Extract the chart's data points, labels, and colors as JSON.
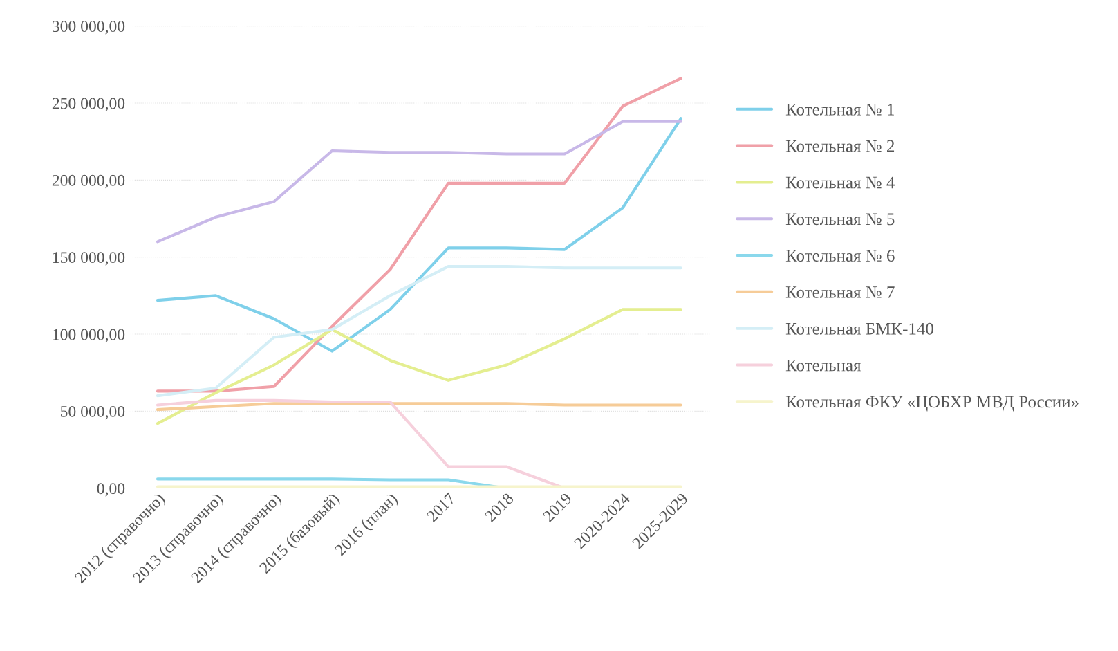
{
  "chart_data": {
    "type": "line",
    "categories": [
      "2012 (справочно)",
      "2013 (справочно)",
      "2014 (справочно)",
      "2015 (базовый)",
      "2016 (план)",
      "2017",
      "2018",
      "2019",
      "2020-2024",
      "2025-2029"
    ],
    "series": [
      {
        "name": "Котельная № 1",
        "color": "#7fd0ea",
        "values": [
          122000,
          125000,
          110000,
          89000,
          116000,
          156000,
          156000,
          155000,
          182000,
          240000
        ]
      },
      {
        "name": "Котельная № 2",
        "color": "#f0a0a8",
        "values": [
          63000,
          63000,
          66000,
          105000,
          142000,
          198000,
          198000,
          198000,
          248000,
          266000
        ]
      },
      {
        "name": "Котельная № 4",
        "color": "#e4ee90",
        "values": [
          42000,
          62000,
          80000,
          103000,
          83000,
          70000,
          80000,
          97000,
          116000,
          116000
        ]
      },
      {
        "name": "Котельная № 5",
        "color": "#c8b8e8",
        "values": [
          160000,
          176000,
          186000,
          219000,
          218000,
          218000,
          217000,
          217000,
          238000,
          238000
        ]
      },
      {
        "name": "Котельная № 6",
        "color": "#8ad8ec",
        "values": [
          6000,
          6000,
          6000,
          6000,
          5500,
          5500,
          0,
          0,
          0,
          0
        ]
      },
      {
        "name": "Котельная № 7",
        "color": "#f6cc98",
        "values": [
          51000,
          53000,
          55000,
          55000,
          55000,
          55000,
          55000,
          54000,
          54000,
          54000
        ]
      },
      {
        "name": "Котельная БМК-140",
        "color": "#d4eef6",
        "values": [
          60000,
          65000,
          98000,
          103000,
          125000,
          144000,
          144000,
          143000,
          143000,
          143000
        ]
      },
      {
        "name": "Котельная",
        "color": "#f6d0dc",
        "values": [
          54000,
          57000,
          57000,
          56000,
          56000,
          14000,
          14000,
          0,
          0,
          0
        ]
      },
      {
        "name": "Котельная ФКУ «ЦОБХР МВД России»",
        "color": "#f6f4cc",
        "values": [
          1000,
          1000,
          1000,
          1000,
          1000,
          1000,
          1000,
          1000,
          1000,
          1000
        ]
      }
    ],
    "ylim": [
      0,
      300000
    ],
    "yticks": [
      {
        "value": 0,
        "label": "0,00"
      },
      {
        "value": 50000,
        "label": "50 000,00"
      },
      {
        "value": 100000,
        "label": "100 000,00"
      },
      {
        "value": 150000,
        "label": "150 000,00"
      },
      {
        "value": 200000,
        "label": "200 000,00"
      },
      {
        "value": 250000,
        "label": "250 000,00"
      },
      {
        "value": 300000,
        "label": "300 000,00"
      }
    ],
    "grid": "y",
    "legend": "right",
    "marker": "none",
    "line_style": "solid"
  }
}
